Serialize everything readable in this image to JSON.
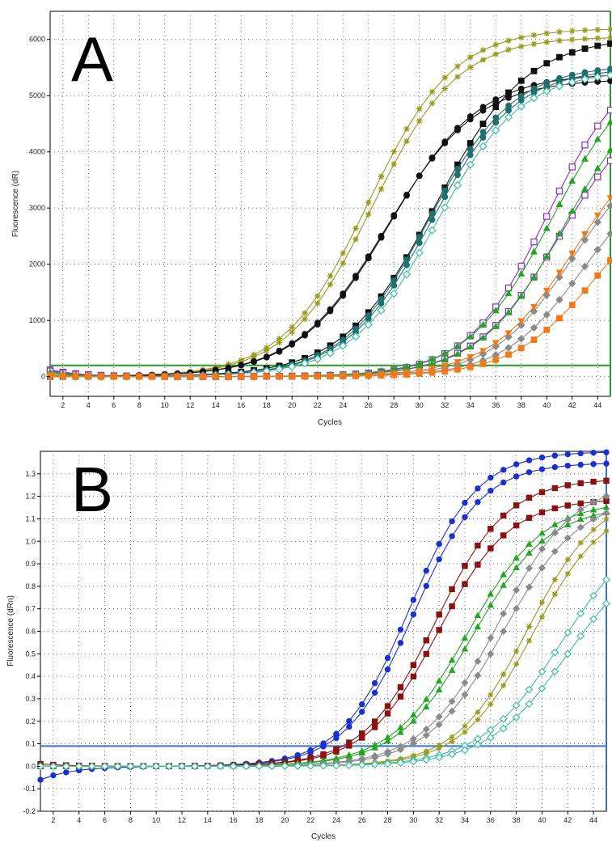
{
  "chart_data": [
    {
      "type": "line",
      "panel_label": "A",
      "xlabel": "Cycles",
      "ylabel": "Fluorescence (dR)",
      "xlim": [
        1,
        45
      ],
      "ylim": [
        -350,
        6500
      ],
      "x_ticks": [
        2,
        4,
        6,
        8,
        10,
        12,
        14,
        16,
        18,
        20,
        22,
        24,
        26,
        28,
        30,
        32,
        34,
        36,
        38,
        40,
        42,
        44
      ],
      "y_ticks": [
        0,
        1000,
        2000,
        3000,
        4000,
        5000,
        6000
      ],
      "grid": true,
      "threshold": {
        "value": 200,
        "color": "#2a9a2a"
      },
      "baseline_end": 45,
      "series": [
        {
          "color": "#9a9a1e",
          "marker": "star",
          "plateau": 6200,
          "midpoint": 26.0,
          "slope": 0.3,
          "start": 30
        },
        {
          "color": "#9a9a1e",
          "marker": "star",
          "plateau": 6050,
          "midpoint": 26.3,
          "slope": 0.3,
          "start": 0
        },
        {
          "color": "#111111",
          "marker": "circle",
          "plateau": 5400,
          "midpoint": 27.6,
          "slope": 0.28,
          "start": 10
        },
        {
          "color": "#111111",
          "marker": "circle",
          "plateau": 5300,
          "midpoint": 27.4,
          "slope": 0.28,
          "start": 0
        },
        {
          "color": "#111111",
          "marker": "square",
          "plateau": 6050,
          "midpoint": 31.2,
          "slope": 0.28,
          "start": 0
        },
        {
          "color": "#1f6f6f",
          "marker": "circle",
          "plateau": 5550,
          "midpoint": 30.7,
          "slope": 0.3,
          "start": 0
        },
        {
          "color": "#1f6f6f",
          "marker": "circle",
          "plateau": 5500,
          "midpoint": 30.9,
          "slope": 0.3,
          "start": 0
        },
        {
          "color": "#3cbfa3",
          "marker": "diamond-open",
          "plateau": 5450,
          "midpoint": 31.3,
          "slope": 0.3,
          "start": 0
        },
        {
          "color": "#8c2bc4",
          "marker": "square-open",
          "plateau": 5700,
          "midpoint": 40.0,
          "slope": 0.32,
          "start": 120
        },
        {
          "color": "#8c2bc4",
          "marker": "square-open",
          "plateau": 5000,
          "midpoint": 41.0,
          "slope": 0.3,
          "start": 100
        },
        {
          "color": "#22a622",
          "marker": "triangle",
          "plateau": 5700,
          "midpoint": 40.5,
          "slope": 0.3,
          "start": 80
        },
        {
          "color": "#22a622",
          "marker": "triangle",
          "plateau": 5400,
          "midpoint": 41.4,
          "slope": 0.3,
          "start": 60
        },
        {
          "color": "#8a8a8a",
          "marker": "diamond",
          "plateau": 4200,
          "midpoint": 42.0,
          "slope": 0.32,
          "start": 0
        },
        {
          "color": "#8a8a8a",
          "marker": "diamond",
          "plateau": 3800,
          "midpoint": 42.8,
          "slope": 0.32,
          "start": 0
        },
        {
          "color": "#f07a1a",
          "marker": "triangle-down",
          "plateau": 4600,
          "midpoint": 42.3,
          "slope": 0.3,
          "start": 0
        },
        {
          "color": "#f07a1a",
          "marker": "square",
          "plateau": 3600,
          "midpoint": 44.0,
          "slope": 0.3,
          "start": 20
        }
      ]
    },
    {
      "type": "line",
      "panel_label": "B",
      "xlabel": "Cycles",
      "ylabel": "Fluorescence (dRn)",
      "xlim": [
        1,
        45
      ],
      "ylim": [
        -0.2,
        1.4
      ],
      "x_ticks": [
        2,
        4,
        6,
        8,
        10,
        12,
        14,
        16,
        18,
        20,
        22,
        24,
        26,
        28,
        30,
        32,
        34,
        36,
        38,
        40,
        42,
        44
      ],
      "y_ticks": [
        -0.2,
        -0.1,
        0.0,
        0.1,
        0.2,
        0.3,
        0.4,
        0.5,
        0.6,
        0.7,
        0.8,
        0.9,
        1.0,
        1.1,
        1.2,
        1.3
      ],
      "grid": true,
      "threshold": {
        "value": 0.09,
        "color": "#3a6fd8"
      },
      "series": [
        {
          "color": "#1a2fd0",
          "marker": "circle",
          "plateau": 1.4,
          "midpoint": 29.7,
          "slope": 0.38,
          "start": -0.06
        },
        {
          "color": "#1a2fd0",
          "marker": "circle",
          "plateau": 1.35,
          "midpoint": 30.0,
          "slope": 0.38,
          "start": 0.0
        },
        {
          "color": "#8b1111",
          "marker": "square",
          "plateau": 1.28,
          "midpoint": 31.7,
          "slope": 0.36,
          "start": 0.01
        },
        {
          "color": "#8b1111",
          "marker": "square",
          "plateau": 1.19,
          "midpoint": 31.9,
          "slope": 0.36,
          "start": 0.0
        },
        {
          "color": "#22a622",
          "marker": "triangle",
          "plateau": 1.18,
          "midpoint": 34.2,
          "slope": 0.34,
          "start": 0.0
        },
        {
          "color": "#22a622",
          "marker": "triangle",
          "plateau": 1.16,
          "midpoint": 34.6,
          "slope": 0.34,
          "start": 0.0
        },
        {
          "color": "#8a8a8a",
          "marker": "diamond",
          "plateau": 1.27,
          "midpoint": 36.6,
          "slope": 0.34,
          "start": 0.0
        },
        {
          "color": "#8a8a8a",
          "marker": "diamond",
          "plateau": 1.2,
          "midpoint": 37.0,
          "slope": 0.34,
          "start": 0.0
        },
        {
          "color": "#9a9a1e",
          "marker": "star",
          "plateau": 1.22,
          "midpoint": 38.9,
          "slope": 0.36,
          "start": 0.0
        },
        {
          "color": "#9a9a1e",
          "marker": "star",
          "plateau": 1.18,
          "midpoint": 39.3,
          "slope": 0.36,
          "start": 0.0
        },
        {
          "color": "#3cbfa3",
          "marker": "diamond-open",
          "plateau": 1.1,
          "midpoint": 41.5,
          "slope": 0.32,
          "start": 0.0
        },
        {
          "color": "#3cbfa3",
          "marker": "diamond-open",
          "plateau": 1.0,
          "midpoint": 42.0,
          "slope": 0.32,
          "start": 0.0
        }
      ]
    }
  ]
}
